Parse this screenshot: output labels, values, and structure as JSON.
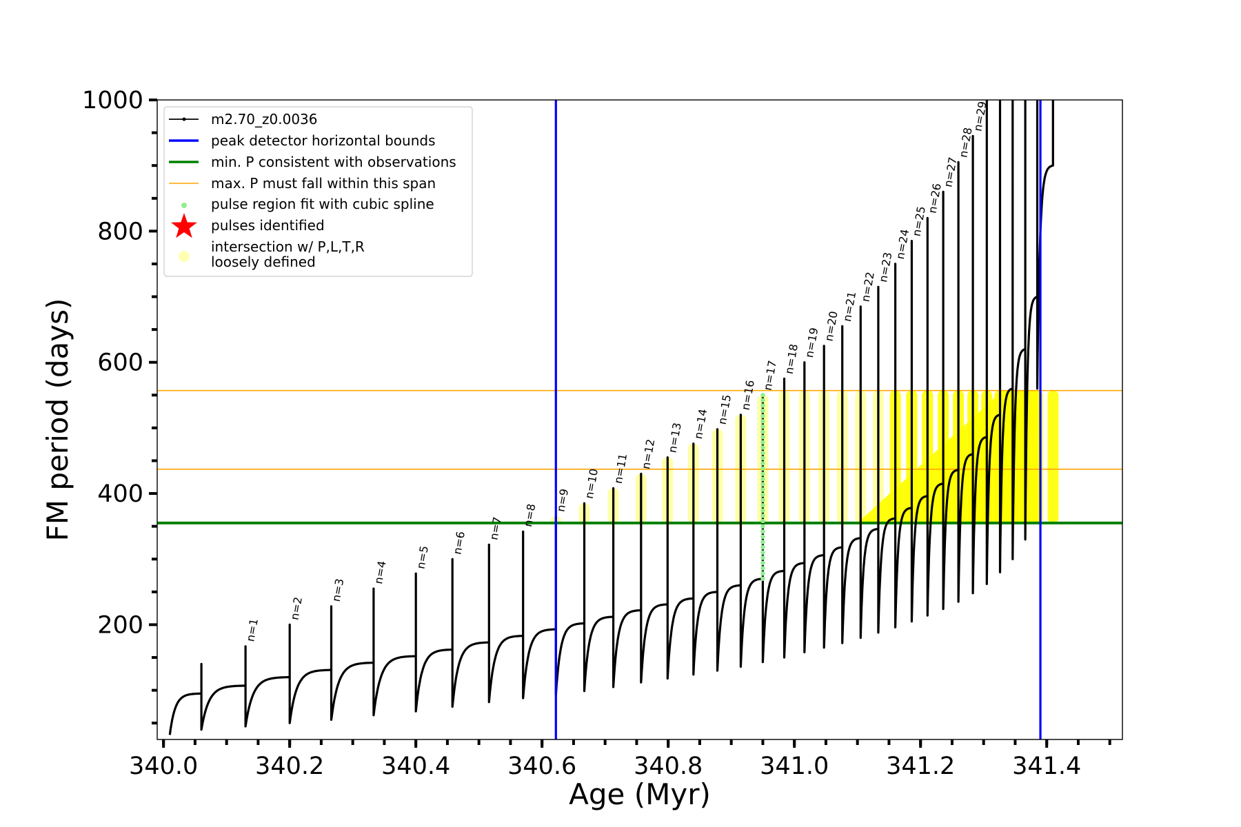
{
  "chart_data": {
    "type": "line",
    "xlabel": "Age (Myr)",
    "ylabel": "FM period (days)",
    "xlim": [
      339.99,
      341.52
    ],
    "ylim": [
      25,
      1000
    ],
    "xticks": [
      340.0,
      340.2,
      340.4,
      340.6,
      340.8,
      341.0,
      341.2,
      341.4
    ],
    "xtick_labels": [
      "340.0",
      "340.2",
      "340.4",
      "340.6",
      "340.8",
      "341.0",
      "341.2",
      "341.4"
    ],
    "yticks": [
      200,
      400,
      600,
      800,
      1000
    ],
    "ytick_labels": [
      "200",
      "400",
      "600",
      "800",
      "1000"
    ],
    "grid": false,
    "legend_position": "top-left",
    "legend": [
      {
        "label": "m2.70_z0.0036",
        "type": "line-dot",
        "color": "#000000"
      },
      {
        "label": "peak detector horizontal bounds",
        "type": "line",
        "color": "#0000ff"
      },
      {
        "label": "min. P consistent with observations",
        "type": "line",
        "color": "#008000"
      },
      {
        "label": "max. P must fall within this span",
        "type": "thin-line",
        "color": "#ffa500"
      },
      {
        "label": "pulse region fit with cubic spline",
        "type": "dot",
        "color": "#90ee90"
      },
      {
        "label": "pulses identified",
        "type": "star",
        "color": "#ff0000"
      },
      {
        "label": "intersection w/ P,L,T,R",
        "label2": "loosely defined",
        "type": "circle",
        "color": "#ffffb3"
      }
    ],
    "vertical_lines": [
      {
        "x": 340.622,
        "color": "#0000ff",
        "name": "peak detector horizontal bounds"
      },
      {
        "x": 341.39,
        "color": "#0000ff",
        "name": "peak detector horizontal bounds"
      }
    ],
    "horizontal_lines": [
      {
        "y": 355,
        "color": "#008000",
        "name": "min. P consistent with observations"
      },
      {
        "y": 437,
        "color": "#ffa500",
        "name": "max. P must fall within this span"
      },
      {
        "y": 557,
        "color": "#ffa500",
        "name": "max. P must fall within this span"
      }
    ],
    "series_color": "#000000",
    "cycles": [
      {
        "x_start": 340.01,
        "x_peak": 340.06,
        "base": 32,
        "plateau": 95,
        "peak": 140
      },
      {
        "x_start": 340.06,
        "x_peak": 340.13,
        "base": 40,
        "plateau": 107,
        "peak": 167
      },
      {
        "x_start": 340.13,
        "x_peak": 340.2,
        "base": 45,
        "plateau": 120,
        "peak": 200
      },
      {
        "x_start": 340.2,
        "x_peak": 340.266,
        "base": 50,
        "plateau": 131,
        "peak": 228
      },
      {
        "x_start": 340.266,
        "x_peak": 340.333,
        "base": 55,
        "plateau": 142,
        "peak": 255
      },
      {
        "x_start": 340.333,
        "x_peak": 340.4,
        "base": 62,
        "plateau": 152,
        "peak": 278
      },
      {
        "x_start": 340.4,
        "x_peak": 340.458,
        "base": 68,
        "plateau": 162,
        "peak": 300
      },
      {
        "x_start": 340.458,
        "x_peak": 340.516,
        "base": 75,
        "plateau": 173,
        "peak": 322
      },
      {
        "x_start": 340.516,
        "x_peak": 340.57,
        "base": 82,
        "plateau": 183,
        "peak": 342
      },
      {
        "x_start": 340.57,
        "x_peak": 340.622,
        "base": 88,
        "plateau": 193,
        "peak": 365
      },
      {
        "x_start": 340.622,
        "x_peak": 340.667,
        "base": 93,
        "plateau": 202,
        "peak": 385
      },
      {
        "x_start": 340.667,
        "x_peak": 340.713,
        "base": 99,
        "plateau": 212,
        "peak": 408
      },
      {
        "x_start": 340.713,
        "x_peak": 340.757,
        "base": 105,
        "plateau": 222,
        "peak": 430
      },
      {
        "x_start": 340.757,
        "x_peak": 340.799,
        "base": 112,
        "plateau": 231,
        "peak": 455
      },
      {
        "x_start": 340.799,
        "x_peak": 340.84,
        "base": 118,
        "plateau": 240,
        "peak": 476
      },
      {
        "x_start": 340.84,
        "x_peak": 340.878,
        "base": 124,
        "plateau": 250,
        "peak": 498
      },
      {
        "x_start": 340.878,
        "x_peak": 340.915,
        "base": 130,
        "plateau": 260,
        "peak": 520
      },
      {
        "x_start": 340.915,
        "x_peak": 340.95,
        "base": 136,
        "plateau": 270,
        "peak": 550
      },
      {
        "x_start": 340.95,
        "x_peak": 340.984,
        "base": 143,
        "plateau": 282,
        "peak": 575
      },
      {
        "x_start": 340.984,
        "x_peak": 341.016,
        "base": 150,
        "plateau": 294,
        "peak": 600
      },
      {
        "x_start": 341.016,
        "x_peak": 341.047,
        "base": 158,
        "plateau": 306,
        "peak": 625
      },
      {
        "x_start": 341.047,
        "x_peak": 341.076,
        "base": 165,
        "plateau": 318,
        "peak": 655
      },
      {
        "x_start": 341.076,
        "x_peak": 341.105,
        "base": 172,
        "plateau": 332,
        "peak": 685
      },
      {
        "x_start": 341.105,
        "x_peak": 341.133,
        "base": 180,
        "plateau": 346,
        "peak": 715
      },
      {
        "x_start": 341.133,
        "x_peak": 341.16,
        "base": 188,
        "plateau": 362,
        "peak": 750
      },
      {
        "x_start": 341.16,
        "x_peak": 341.186,
        "base": 196,
        "plateau": 378,
        "peak": 785
      },
      {
        "x_start": 341.186,
        "x_peak": 341.211,
        "base": 205,
        "plateau": 396,
        "peak": 820
      },
      {
        "x_start": 341.211,
        "x_peak": 341.236,
        "base": 214,
        "plateau": 415,
        "peak": 860
      },
      {
        "x_start": 341.236,
        "x_peak": 341.26,
        "base": 224,
        "plateau": 436,
        "peak": 905
      },
      {
        "x_start": 341.26,
        "x_peak": 341.283,
        "base": 235,
        "plateau": 460,
        "peak": 945
      },
      {
        "x_start": 341.283,
        "x_peak": 341.305,
        "base": 248,
        "plateau": 486,
        "peak": 1000
      },
      {
        "x_start": 341.305,
        "x_peak": 341.326,
        "base": 262,
        "plateau": 520,
        "peak": 1000
      },
      {
        "x_start": 341.326,
        "x_peak": 341.346,
        "base": 280,
        "plateau": 560,
        "peak": 1000
      },
      {
        "x_start": 341.346,
        "x_peak": 341.366,
        "base": 300,
        "plateau": 620,
        "peak": 1000
      },
      {
        "x_start": 341.366,
        "x_peak": 341.385,
        "base": 330,
        "plateau": 700,
        "peak": 1000
      },
      {
        "x_start": 341.385,
        "x_peak": 341.41,
        "base": 560,
        "plateau": 900,
        "peak": 1000
      }
    ],
    "pulse_labels": [
      {
        "text": "n=1",
        "x": 340.13,
        "y": 167
      },
      {
        "text": "n=2",
        "x": 340.2,
        "y": 200
      },
      {
        "text": "n=3",
        "x": 340.266,
        "y": 228
      },
      {
        "text": "n=4",
        "x": 340.333,
        "y": 255
      },
      {
        "text": "n=5",
        "x": 340.4,
        "y": 278
      },
      {
        "text": "n=6",
        "x": 340.458,
        "y": 300
      },
      {
        "text": "n=7",
        "x": 340.516,
        "y": 322
      },
      {
        "text": "n=8",
        "x": 340.57,
        "y": 342
      },
      {
        "text": "n=9",
        "x": 340.622,
        "y": 365
      },
      {
        "text": "n=10",
        "x": 340.667,
        "y": 385
      },
      {
        "text": "n=11",
        "x": 340.713,
        "y": 408
      },
      {
        "text": "n=12",
        "x": 340.757,
        "y": 430
      },
      {
        "text": "n=13",
        "x": 340.799,
        "y": 455
      },
      {
        "text": "n=14",
        "x": 340.84,
        "y": 476
      },
      {
        "text": "n=15",
        "x": 340.878,
        "y": 498
      },
      {
        "text": "n=16",
        "x": 340.915,
        "y": 520
      },
      {
        "text": "n=17",
        "x": 340.95,
        "y": 550
      },
      {
        "text": "n=18",
        "x": 340.984,
        "y": 575
      },
      {
        "text": "n=19",
        "x": 341.016,
        "y": 600
      },
      {
        "text": "n=20",
        "x": 341.047,
        "y": 625
      },
      {
        "text": "n=21",
        "x": 341.076,
        "y": 655
      },
      {
        "text": "n=22",
        "x": 341.105,
        "y": 685
      },
      {
        "text": "n=23",
        "x": 341.133,
        "y": 715
      },
      {
        "text": "n=24",
        "x": 341.16,
        "y": 750
      },
      {
        "text": "n=25",
        "x": 341.186,
        "y": 785
      },
      {
        "text": "n=26",
        "x": 341.211,
        "y": 820
      },
      {
        "text": "n=27",
        "x": 341.236,
        "y": 860
      },
      {
        "text": "n=28",
        "x": 341.26,
        "y": 905
      },
      {
        "text": "n=29",
        "x": 341.283,
        "y": 945
      }
    ],
    "spline_region": {
      "x": 340.95,
      "y_min": 270,
      "y_max": 550,
      "color": "#90ee90"
    },
    "intersection_band": {
      "y_min": 355,
      "y_max": 557,
      "x_from": 340.622,
      "x_to": 341.39,
      "color": "#ffff00"
    }
  }
}
